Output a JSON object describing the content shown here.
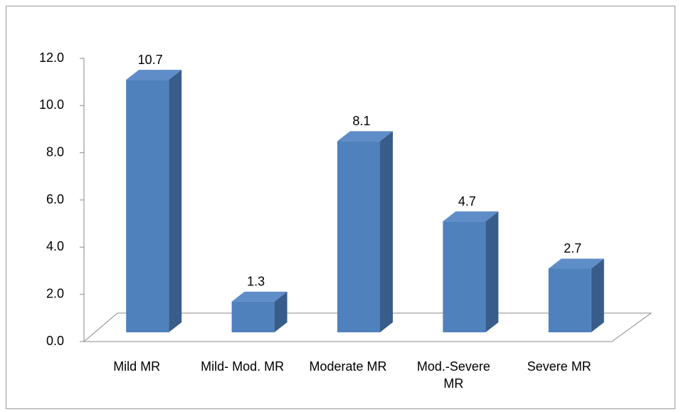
{
  "chart_data": {
    "type": "bar",
    "categories": [
      "Mild MR",
      "Mild- Mod. MR",
      "Moderate MR",
      "Mod.-Severe MR",
      "Severe MR"
    ],
    "values": [
      10.7,
      1.3,
      8.1,
      4.7,
      2.7
    ],
    "color": "#4f81bd",
    "ylim": [
      0,
      12
    ],
    "yticks": [
      {
        "value": 0,
        "label": "0.0"
      },
      {
        "value": 2,
        "label": "2.0"
      },
      {
        "value": 4,
        "label": "4.0"
      },
      {
        "value": 6,
        "label": "6.0"
      },
      {
        "value": 8,
        "label": "8.0"
      },
      {
        "value": 10,
        "label": "10.0"
      },
      {
        "value": 12,
        "label": "12.0"
      }
    ],
    "grid": false
  }
}
